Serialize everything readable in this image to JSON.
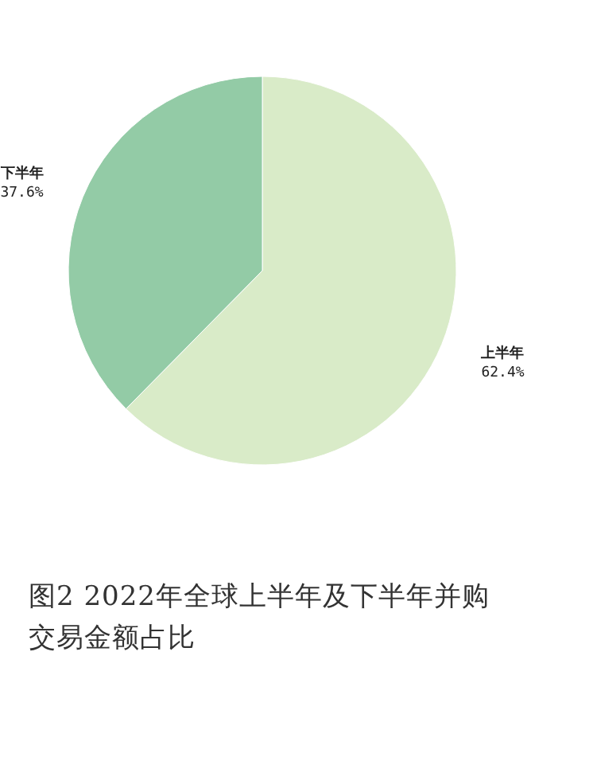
{
  "chart_data": {
    "type": "pie",
    "title": "图2  2022年全球上半年及下半年并购交易金额占比",
    "categories": [
      "上半年",
      "下半年"
    ],
    "values": [
      62.4,
      37.6
    ],
    "colors": [
      "#d9ebc8",
      "#93cba6"
    ],
    "value_labels": [
      "62.4%",
      "37.6%"
    ]
  }
}
